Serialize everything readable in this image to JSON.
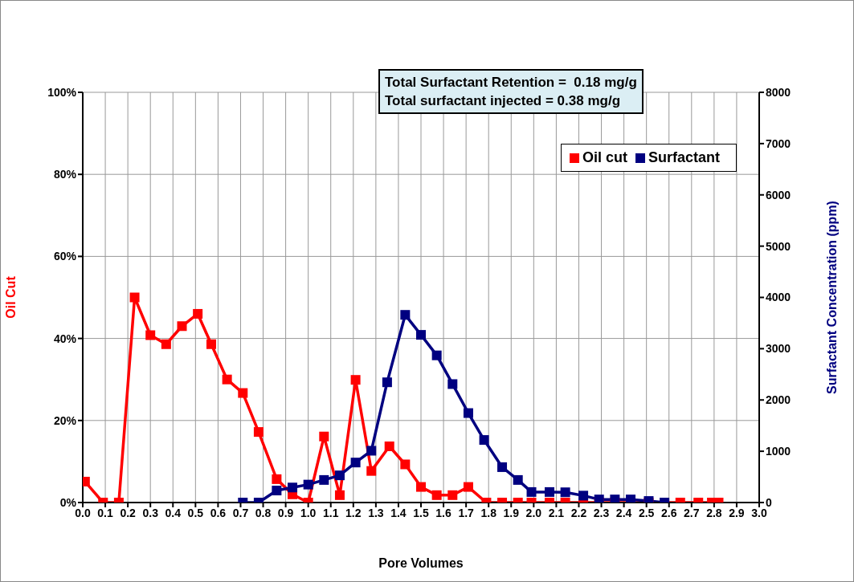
{
  "chart_data": {
    "type": "line",
    "xlabel": "Pore Volumes",
    "ylabel": "Oil Cut",
    "y2label": "Surfactant Concentration (ppm)",
    "annotations": [
      "Total Surfactant Retention =  0.18 mg/g",
      "Total surfactant injected = 0.38 mg/g"
    ],
    "series": [
      {
        "name": "Oil cut",
        "color": "#ff0000",
        "x": [
          0.01,
          0.09,
          0.16,
          0.23,
          0.3,
          0.37,
          0.44,
          0.51,
          0.57,
          0.64,
          0.71,
          0.78,
          0.86,
          0.93,
          1.0,
          1.07,
          1.14,
          1.21,
          1.28,
          1.36,
          1.43,
          1.5,
          1.57,
          1.64,
          1.71,
          1.79,
          1.86,
          1.93,
          1.99,
          2.07,
          2.14,
          2.22,
          2.29,
          2.36,
          2.43,
          2.51,
          2.65,
          2.73,
          2.79,
          2.82
        ],
        "values": [
          5.1,
          0,
          0,
          50,
          40.8,
          38.6,
          43,
          46,
          38.6,
          30,
          26.7,
          17.2,
          5.7,
          2,
          0,
          16.1,
          1.8,
          29.9,
          7.7,
          13.7,
          9.3,
          3.8,
          1.8,
          1.8,
          3.8,
          0,
          0,
          0,
          0,
          0,
          0,
          0,
          0,
          0,
          0,
          0,
          0,
          0,
          0,
          0
        ]
      },
      {
        "name": "Surfactant",
        "color": "#000080",
        "axis": "y2",
        "x": [
          0.71,
          0.78,
          0.86,
          0.93,
          1.0,
          1.07,
          1.14,
          1.21,
          1.28,
          1.35,
          1.43,
          1.5,
          1.57,
          1.64,
          1.71,
          1.78,
          1.86,
          1.93,
          1.99,
          2.07,
          2.14,
          2.22,
          2.29,
          2.36,
          2.43,
          2.51,
          2.58
        ],
        "values": [
          0,
          0,
          234,
          293,
          350,
          440,
          530,
          780,
          1010,
          2345,
          3660,
          3270,
          2870,
          2310,
          1745,
          1220,
          690,
          440,
          205,
          205,
          200,
          135,
          60,
          60,
          60,
          30,
          0
        ]
      }
    ],
    "xlim": [
      0,
      3
    ],
    "xticks": [
      {
        "value": 0,
        "label": "0.0"
      },
      {
        "value": 0.1,
        "label": "0.1"
      },
      {
        "value": 0.2,
        "label": "0.2"
      },
      {
        "value": 0.3,
        "label": "0.3"
      },
      {
        "value": 0.4,
        "label": "0.4"
      },
      {
        "value": 0.5,
        "label": "0.5"
      },
      {
        "value": 0.6,
        "label": "0.6"
      },
      {
        "value": 0.7,
        "label": "0.7"
      },
      {
        "value": 0.8,
        "label": "0.8"
      },
      {
        "value": 0.9,
        "label": "0.9"
      },
      {
        "value": 1,
        "label": "1.0"
      },
      {
        "value": 1.1,
        "label": "1.1"
      },
      {
        "value": 1.2,
        "label": "1.2"
      },
      {
        "value": 1.3,
        "label": "1.3"
      },
      {
        "value": 1.4,
        "label": "1.4"
      },
      {
        "value": 1.5,
        "label": "1.5"
      },
      {
        "value": 1.6,
        "label": "1.6"
      },
      {
        "value": 1.7,
        "label": "1.7"
      },
      {
        "value": 1.8,
        "label": "1.8"
      },
      {
        "value": 1.9,
        "label": "1.9"
      },
      {
        "value": 2,
        "label": "2.0"
      },
      {
        "value": 2.1,
        "label": "2.1"
      },
      {
        "value": 2.2,
        "label": "2.2"
      },
      {
        "value": 2.3,
        "label": "2.3"
      },
      {
        "value": 2.4,
        "label": "2.4"
      },
      {
        "value": 2.5,
        "label": "2.5"
      },
      {
        "value": 2.6,
        "label": "2.6"
      },
      {
        "value": 2.7,
        "label": "2.7"
      },
      {
        "value": 2.8,
        "label": "2.8"
      },
      {
        "value": 2.9,
        "label": "2.9"
      },
      {
        "value": 3,
        "label": "3.0"
      }
    ],
    "ylim": [
      0,
      100
    ],
    "yticks": [
      {
        "value": 0,
        "label": "0%"
      },
      {
        "value": 20,
        "label": "20%"
      },
      {
        "value": 40,
        "label": "40%"
      },
      {
        "value": 60,
        "label": "60%"
      },
      {
        "value": 80,
        "label": "80%"
      },
      {
        "value": 100,
        "label": "100%"
      }
    ],
    "y2lim": [
      0,
      8000
    ],
    "y2ticks": [
      0,
      1000,
      2000,
      3000,
      4000,
      5000,
      6000,
      7000,
      8000
    ],
    "grid": true,
    "legend": "top right",
    "marker": "square",
    "line_style": "solid"
  }
}
